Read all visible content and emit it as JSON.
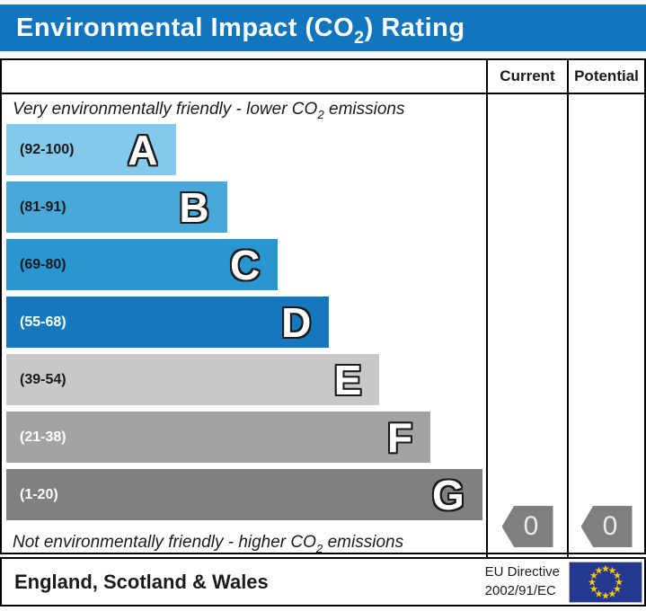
{
  "title": {
    "prefix": "Environmental Impact (CO",
    "sub": "2",
    "suffix": ") Rating"
  },
  "table": {
    "columns": {
      "current": "Current",
      "potential": "Potential"
    },
    "caption_top": {
      "prefix": "Very environmentally friendly - lower CO",
      "sub": "2",
      "suffix": " emissions"
    },
    "caption_bottom": {
      "prefix": "Not environmentally friendly - higher CO",
      "sub": "2",
      "suffix": " emissions"
    }
  },
  "chart_data": {
    "type": "bar",
    "title": "Environmental Impact (CO2) Rating",
    "bands": [
      {
        "letter": "A",
        "range": "(92-100)",
        "range_min": 92,
        "range_max": 100,
        "color": "#84CAEC",
        "text_color": "#1a1a1a",
        "width_pct": 35.3
      },
      {
        "letter": "B",
        "range": "(81-91)",
        "range_min": 81,
        "range_max": 91,
        "color": "#47A8D9",
        "text_color": "#1a1a1a",
        "width_pct": 46.0
      },
      {
        "letter": "C",
        "range": "(69-80)",
        "range_min": 69,
        "range_max": 80,
        "color": "#2996D1",
        "text_color": "#1a1a1a",
        "width_pct": 56.6
      },
      {
        "letter": "D",
        "range": "(55-68)",
        "range_min": 55,
        "range_max": 68,
        "color": "#1578BE",
        "text_color": "#ffffff",
        "width_pct": 67.3
      },
      {
        "letter": "E",
        "range": "(39-54)",
        "range_min": 39,
        "range_max": 54,
        "color": "#C9C9C7",
        "text_color": "#1a1a1a",
        "width_pct": 77.8
      },
      {
        "letter": "F",
        "range": "(21-38)",
        "range_min": 21,
        "range_max": 38,
        "color": "#A3A3A1",
        "text_color": "#ffffff",
        "width_pct": 88.4
      },
      {
        "letter": "G",
        "range": "(1-20)",
        "range_min": 1,
        "range_max": 20,
        "color": "#808080",
        "text_color": "#ffffff",
        "width_pct": 99.2
      }
    ],
    "current": 0,
    "potential": 0,
    "arrow_color": "#808080",
    "header_color": "#1276BE"
  },
  "footer": {
    "region": "England, Scotland & Wales",
    "directive_line1": "EU Directive",
    "directive_line2": "2002/91/EC",
    "flag_icon": "eu-flag-icon",
    "flag_blue": "#24388F",
    "star_yellow": "#FFCC00"
  }
}
